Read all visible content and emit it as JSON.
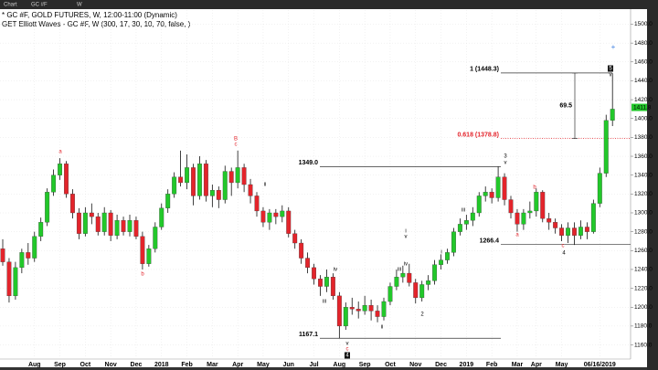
{
  "toolbar": {
    "items": [
      "Chart",
      "GC #F",
      "W"
    ]
  },
  "chart_data": {
    "type": "candlestick",
    "title": "* GC #F, GOLD FUTURES, W, 12:00-11:00 (Dynamic)",
    "subtitle": "GET Elliott Waves - GC #F, W (300, 17, 30, 10, 70, false, )",
    "categories": [
      null,
      null,
      null,
      null,
      null,
      "Aug",
      null,
      null,
      null,
      "Sep",
      null,
      null,
      null,
      "Oct",
      null,
      null,
      null,
      "Nov",
      null,
      null,
      null,
      "Dec",
      null,
      null,
      null,
      "2018",
      null,
      null,
      null,
      "Feb",
      null,
      null,
      null,
      "Mar",
      null,
      null,
      null,
      "Apr",
      null,
      null,
      null,
      "May",
      null,
      null,
      null,
      "Jun",
      null,
      null,
      null,
      "Jul",
      null,
      null,
      null,
      "Aug",
      null,
      null,
      null,
      "Sep",
      null,
      null,
      null,
      "Oct",
      null,
      null,
      null,
      "Nov",
      null,
      null,
      null,
      "Dec",
      null,
      null,
      null,
      "2019",
      null,
      null,
      null,
      "Feb",
      null,
      null,
      null,
      "Mar",
      null,
      null,
      "Apr",
      null,
      null,
      null,
      "May",
      null,
      null,
      null,
      null,
      null,
      "06/16/2019",
      null,
      null
    ],
    "open": [
      1262,
      1248,
      1212,
      1242,
      1258,
      1252,
      1275,
      1290,
      1322,
      1340,
      1352,
      1320,
      1300,
      1278,
      1300,
      1296,
      1280,
      1300,
      1276,
      1292,
      1280,
      1292,
      1275,
      1246,
      1262,
      1285,
      1305,
      1320,
      1338,
      1332,
      1348,
      1318,
      1352,
      1318,
      1324,
      1314,
      1344,
      1332,
      1348,
      1330,
      1318,
      1302,
      1290,
      1300,
      1296,
      1302,
      1278,
      1268,
      1252,
      1242,
      1230,
      1222,
      1232,
      1212,
      1180,
      1200,
      1198,
      1196,
      1202,
      1196,
      1190,
      1206,
      1222,
      1232,
      1236,
      1226,
      1210,
      1224,
      1228,
      1245,
      1250,
      1258,
      1280,
      1288,
      1292,
      1300,
      1318,
      1322,
      1316,
      1338,
      1314,
      1300,
      1288,
      1300,
      1302,
      1322,
      1294,
      1290,
      1284,
      1276,
      1284,
      1276,
      1285,
      1280,
      1310,
      1342,
      1398
    ],
    "high": [
      1272,
      1252,
      1248,
      1262,
      1268,
      1280,
      1295,
      1326,
      1346,
      1358,
      1355,
      1325,
      1305,
      1306,
      1310,
      1300,
      1306,
      1303,
      1298,
      1296,
      1298,
      1296,
      1280,
      1266,
      1290,
      1310,
      1325,
      1343,
      1366,
      1362,
      1352,
      1360,
      1356,
      1330,
      1328,
      1350,
      1348,
      1366,
      1352,
      1336,
      1322,
      1306,
      1304,
      1304,
      1308,
      1306,
      1282,
      1272,
      1258,
      1246,
      1234,
      1240,
      1236,
      1216,
      1205,
      1210,
      1206,
      1212,
      1208,
      1202,
      1210,
      1226,
      1240,
      1244,
      1246,
      1230,
      1228,
      1234,
      1250,
      1256,
      1262,
      1284,
      1294,
      1298,
      1306,
      1322,
      1328,
      1326,
      1349,
      1342,
      1318,
      1304,
      1304,
      1312,
      1326,
      1324,
      1300,
      1294,
      1288,
      1290,
      1290,
      1292,
      1290,
      1314,
      1348,
      1404,
      1448
    ],
    "low": [
      1244,
      1205,
      1208,
      1236,
      1245,
      1248,
      1270,
      1286,
      1318,
      1335,
      1316,
      1294,
      1272,
      1275,
      1288,
      1276,
      1276,
      1270,
      1272,
      1276,
      1275,
      1272,
      1240,
      1243,
      1258,
      1282,
      1300,
      1316,
      1328,
      1325,
      1308,
      1314,
      1312,
      1306,
      1305,
      1310,
      1318,
      1326,
      1322,
      1310,
      1296,
      1285,
      1282,
      1288,
      1290,
      1274,
      1262,
      1246,
      1236,
      1224,
      1212,
      1216,
      1208,
      1167,
      1176,
      1192,
      1188,
      1192,
      1186,
      1184,
      1186,
      1202,
      1218,
      1226,
      1222,
      1204,
      1206,
      1218,
      1224,
      1240,
      1246,
      1254,
      1276,
      1282,
      1286,
      1296,
      1312,
      1310,
      1312,
      1308,
      1294,
      1280,
      1282,
      1294,
      1296,
      1290,
      1282,
      1278,
      1270,
      1268,
      1266,
      1272,
      1272,
      1278,
      1306,
      1338,
      1392
    ],
    "close": [
      1248,
      1212,
      1242,
      1258,
      1252,
      1275,
      1290,
      1322,
      1340,
      1352,
      1320,
      1300,
      1278,
      1300,
      1296,
      1280,
      1300,
      1276,
      1292,
      1280,
      1292,
      1275,
      1246,
      1262,
      1285,
      1305,
      1320,
      1338,
      1332,
      1348,
      1318,
      1352,
      1318,
      1324,
      1314,
      1344,
      1332,
      1348,
      1330,
      1318,
      1302,
      1290,
      1300,
      1296,
      1302,
      1278,
      1268,
      1252,
      1242,
      1230,
      1222,
      1232,
      1212,
      1180,
      1200,
      1198,
      1196,
      1202,
      1196,
      1190,
      1206,
      1222,
      1232,
      1236,
      1226,
      1210,
      1224,
      1228,
      1245,
      1250,
      1258,
      1280,
      1288,
      1292,
      1300,
      1318,
      1322,
      1316,
      1338,
      1314,
      1300,
      1288,
      1300,
      1302,
      1322,
      1294,
      1290,
      1284,
      1276,
      1284,
      1276,
      1285,
      1280,
      1310,
      1342,
      1398,
      1410
    ],
    "up_color": "#22c82a",
    "down_color": "#e3242b",
    "ylim": [
      1146,
      1515
    ],
    "yticks": [
      {
        "value": 1160,
        "label": "1160.0"
      },
      {
        "value": 1180,
        "label": "1180.0"
      },
      {
        "value": 1200,
        "label": "1200.0"
      },
      {
        "value": 1220,
        "label": "1220.0"
      },
      {
        "value": 1240,
        "label": "1240.0"
      },
      {
        "value": 1260,
        "label": "1260.0"
      },
      {
        "value": 1280,
        "label": "1280.0"
      },
      {
        "value": 1300,
        "label": "1300.0"
      },
      {
        "value": 1320,
        "label": "1320.0"
      },
      {
        "value": 1340,
        "label": "1340.0"
      },
      {
        "value": 1360,
        "label": "1360.0"
      },
      {
        "value": 1380,
        "label": "1380.0"
      },
      {
        "value": 1400,
        "label": "1400.0"
      },
      {
        "value": 1420,
        "label": "1420.0"
      },
      {
        "value": 1440,
        "label": "1440.0"
      },
      {
        "value": 1460,
        "label": "1460.0"
      },
      {
        "value": 1480,
        "label": "1480.0"
      },
      {
        "value": 1500,
        "label": "1500.0"
      }
    ],
    "grid": true,
    "last_price": 1411.8,
    "levels": [
      {
        "label": "1349.0",
        "value": 1349.0
      },
      {
        "label": "1167.1",
        "value": 1167.1
      },
      {
        "label": "1266.4",
        "value": 1266.4
      },
      {
        "label": "1 (1448.3)",
        "value": 1448.3
      },
      {
        "label": "0.618 (1378.8)",
        "value": 1378.8
      }
    ],
    "measure": 69.5,
    "wave_labels": [
      "a",
      "b",
      "B",
      "c",
      "ii",
      "iii",
      "iv",
      "v",
      "c",
      "4",
      "ii",
      "i",
      "v",
      "iii",
      "iv",
      "2",
      "i",
      "iii",
      "3",
      "v",
      "a",
      "b",
      "c",
      "4",
      "5",
      "v"
    ]
  }
}
